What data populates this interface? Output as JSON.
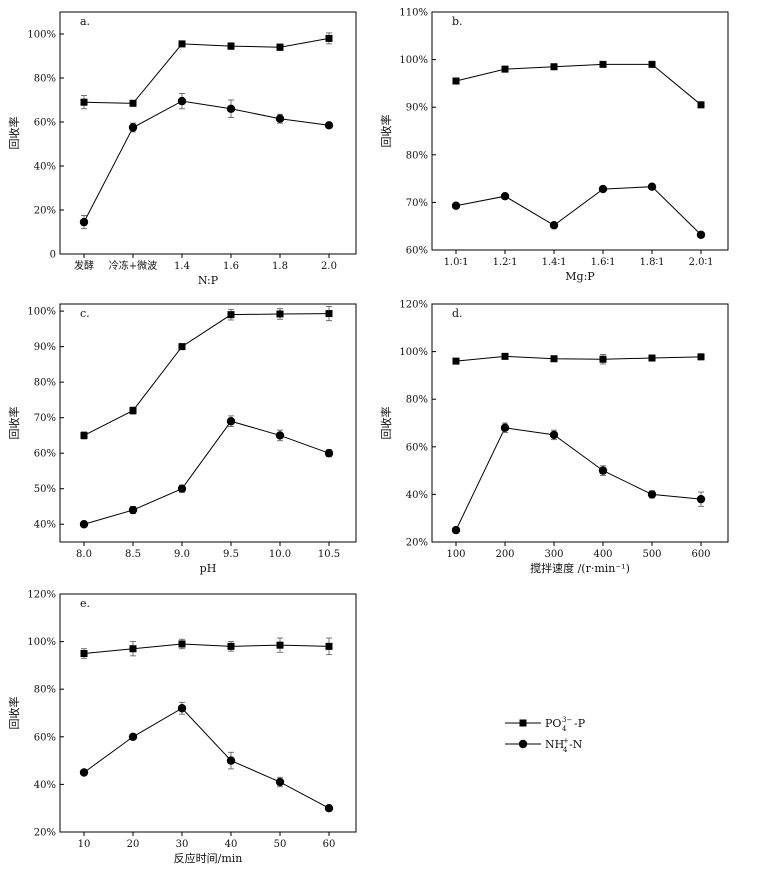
{
  "figure": {
    "legend": {
      "items": [
        {
          "series": "PO4-P",
          "marker": "square",
          "text": "PO",
          "sub": "4",
          "sup": "3−",
          "rest": "-P"
        },
        {
          "series": "NH4-N",
          "marker": "circle",
          "text": "NH",
          "sub": "4",
          "sup": "+",
          "rest": "-N"
        }
      ]
    }
  },
  "chart_data": [
    {
      "panel": "a.",
      "type": "line",
      "xlabel": "N:P",
      "ylabel": "回收率",
      "categories": [
        "发酵",
        "冷冻+微波",
        "1.4",
        "1.6",
        "1.8",
        "2.0"
      ],
      "ylim": [
        0,
        110
      ],
      "yticks": [
        0,
        20,
        40,
        60,
        80,
        100
      ],
      "yticklabels": [
        "0",
        "20%",
        "40%",
        "60%",
        "80%",
        "100%"
      ],
      "series": [
        {
          "name": "PO4-P",
          "marker": "square",
          "values": [
            69,
            68.5,
            95.5,
            94.5,
            94,
            98
          ],
          "errors": [
            3,
            0.5,
            0.5,
            1.5,
            1.5,
            2.5
          ]
        },
        {
          "name": "NH4-N",
          "marker": "circle",
          "values": [
            14.5,
            57.5,
            69.5,
            66,
            61.5,
            58.5
          ],
          "errors": [
            3,
            2,
            3.5,
            4,
            2,
            1
          ]
        }
      ]
    },
    {
      "panel": "b.",
      "type": "line",
      "xlabel": "Mg:P",
      "ylabel": "回收率",
      "categories": [
        "1.0∶1",
        "1.2∶1",
        "1.4∶1",
        "1.6∶1",
        "1.8∶1",
        "2.0∶1"
      ],
      "ylim": [
        60,
        110
      ],
      "yticks": [
        60,
        70,
        80,
        90,
        100,
        110
      ],
      "yticklabels": [
        "60%",
        "70%",
        "80%",
        "90%",
        "100%",
        "110%"
      ],
      "series": [
        {
          "name": "PO4-P",
          "marker": "square",
          "values": [
            95.5,
            98,
            98.5,
            99,
            99,
            90.5
          ],
          "errors": [
            0,
            0,
            0,
            0,
            0,
            0
          ]
        },
        {
          "name": "NH4-N",
          "marker": "circle",
          "values": [
            69.3,
            71.3,
            65.2,
            72.8,
            73.3,
            63.2
          ],
          "errors": [
            0,
            0,
            0,
            0,
            0,
            0
          ]
        }
      ]
    },
    {
      "panel": "c.",
      "type": "line",
      "xlabel": "pH",
      "ylabel": "回收率",
      "categories": [
        "8.0",
        "8.5",
        "9.0",
        "9.5",
        "10.0",
        "10.5"
      ],
      "ylim": [
        35,
        102
      ],
      "yticks": [
        40,
        50,
        60,
        70,
        80,
        90,
        100
      ],
      "yticklabels": [
        "40%",
        "50%",
        "60%",
        "70%",
        "80%",
        "90%",
        "100%"
      ],
      "series": [
        {
          "name": "PO4-P",
          "marker": "square",
          "values": [
            65,
            72,
            90,
            99,
            99.2,
            99.3
          ],
          "errors": [
            1,
            1,
            0.5,
            1.5,
            1.5,
            2
          ]
        },
        {
          "name": "NH4-N",
          "marker": "circle",
          "values": [
            40,
            44,
            50,
            69,
            65,
            60
          ],
          "errors": [
            0.5,
            1,
            1,
            1.5,
            1.5,
            1
          ]
        }
      ]
    },
    {
      "panel": "d.",
      "type": "line",
      "xlabel": "搅拌速度 /(r·min⁻¹)",
      "ylabel": "回收率",
      "categories": [
        "100",
        "200",
        "300",
        "400",
        "500",
        "600"
      ],
      "ylim": [
        20,
        120
      ],
      "yticks": [
        20,
        40,
        60,
        80,
        100,
        120
      ],
      "yticklabels": [
        "20%",
        "40%",
        "60%",
        "80%",
        "100%",
        "120%"
      ],
      "series": [
        {
          "name": "PO4-P",
          "marker": "square",
          "values": [
            96,
            98,
            97,
            96.8,
            97.3,
            97.8
          ],
          "errors": [
            1,
            1,
            1,
            2,
            1,
            1
          ]
        },
        {
          "name": "NH4-N",
          "marker": "circle",
          "values": [
            25,
            68,
            65,
            50,
            40,
            38
          ],
          "errors": [
            1,
            2,
            2,
            2,
            1.5,
            3
          ]
        }
      ]
    },
    {
      "panel": "e.",
      "type": "line",
      "xlabel": "反应时间/min",
      "ylabel": "回收率",
      "categories": [
        "10",
        "20",
        "30",
        "40",
        "50",
        "60"
      ],
      "ylim": [
        20,
        120
      ],
      "yticks": [
        20,
        40,
        60,
        80,
        100,
        120
      ],
      "yticklabels": [
        "20%",
        "40%",
        "60%",
        "80%",
        "100%",
        "120%"
      ],
      "series": [
        {
          "name": "PO4-P",
          "marker": "square",
          "values": [
            95,
            97,
            99,
            98,
            98.5,
            98
          ],
          "errors": [
            2,
            3,
            2,
            2,
            3,
            3.5
          ]
        },
        {
          "name": "NH4-N",
          "marker": "circle",
          "values": [
            45,
            60,
            72,
            50,
            41,
            30
          ],
          "errors": [
            0.5,
            1,
            2.5,
            3.5,
            2,
            0.5
          ]
        }
      ]
    }
  ]
}
